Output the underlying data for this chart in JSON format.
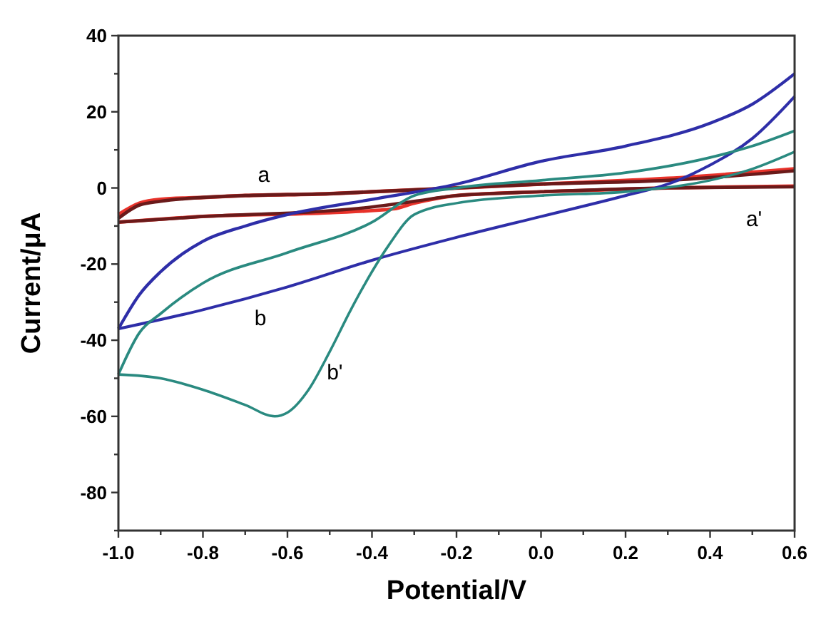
{
  "chart_data": {
    "type": "line",
    "xlabel": "Potential/V",
    "ylabel": "Current/μA",
    "xlim": [
      -1.0,
      0.6
    ],
    "ylim": [
      -90,
      40
    ],
    "xticks": [
      {
        "value": -1.0,
        "label": "-1.0"
      },
      {
        "value": -0.9,
        "label": null
      },
      {
        "value": -0.8,
        "label": "-0.8"
      },
      {
        "value": -0.7,
        "label": null
      },
      {
        "value": -0.6,
        "label": "-0.6"
      },
      {
        "value": -0.5,
        "label": null
      },
      {
        "value": -0.4,
        "label": "-0.4"
      },
      {
        "value": -0.3,
        "label": null
      },
      {
        "value": -0.2,
        "label": "-0.2"
      },
      {
        "value": -0.1,
        "label": null
      },
      {
        "value": 0.0,
        "label": "0.0"
      },
      {
        "value": 0.1,
        "label": null
      },
      {
        "value": 0.2,
        "label": "0.2"
      },
      {
        "value": 0.3,
        "label": null
      },
      {
        "value": 0.4,
        "label": "0.4"
      },
      {
        "value": 0.5,
        "label": null
      },
      {
        "value": 0.6,
        "label": "0.6"
      }
    ],
    "yticks": [
      {
        "value": -90,
        "label": null
      },
      -80,
      {
        "value": -70,
        "label": null
      },
      -60,
      {
        "value": -50,
        "label": null
      },
      -40,
      {
        "value": -30,
        "label": null
      },
      -20,
      {
        "value": -10,
        "label": null
      },
      0,
      {
        "value": 10,
        "label": null
      },
      20,
      {
        "value": 30,
        "label": null
      },
      40
    ],
    "grid": false,
    "marker": "none",
    "line_style": "solid",
    "series": [
      {
        "color": "#e8322a",
        "x": [
          -1.0,
          -0.95,
          -0.9,
          -0.8,
          -0.7,
          -0.5,
          -0.4,
          -0.2,
          0.0,
          0.3,
          0.6
        ],
        "values": [
          -7,
          -4,
          -3,
          -2.5,
          -2,
          -1.5,
          -1,
          0,
          1,
          2.5,
          5
        ]
      },
      {
        "color": "#e8322a",
        "x": [
          -1.0,
          -0.8,
          -0.5,
          -0.35,
          -0.3,
          -0.2,
          0.0,
          0.3,
          0.6
        ],
        "values": [
          -9,
          -7.5,
          -6.5,
          -5.5,
          -4,
          -2,
          -1,
          0,
          0.5
        ]
      },
      {
        "color": "#6a1a1a",
        "x": [
          -1.0,
          -0.95,
          -0.9,
          -0.8,
          -0.7,
          -0.5,
          -0.4,
          -0.2,
          0.0,
          0.3,
          0.6
        ],
        "values": [
          -8,
          -4.5,
          -3.5,
          -2.5,
          -2,
          -1.5,
          -1,
          0,
          1,
          2,
          4.5
        ]
      },
      {
        "color": "#6a1a1a",
        "x": [
          -1.0,
          -0.8,
          -0.5,
          -0.4,
          -0.3,
          -0.2,
          0.0,
          0.3,
          0.6
        ],
        "values": [
          -9,
          -7.5,
          -6,
          -5,
          -3.5,
          -2,
          -1,
          0,
          0.3
        ]
      },
      {
        "color": "#2e2ea8",
        "x": [
          -1.0,
          -0.95,
          -0.9,
          -0.8,
          -0.7,
          -0.6,
          -0.4,
          -0.2,
          0.0,
          0.2,
          0.4,
          0.5,
          0.6
        ],
        "values": [
          -37,
          -28,
          -22,
          -14,
          -10,
          -7,
          -3,
          1,
          7,
          11,
          17,
          22,
          30
        ]
      },
      {
        "color": "#2e2ea8",
        "x": [
          -1.0,
          -0.8,
          -0.6,
          -0.4,
          -0.2,
          0.0,
          0.2,
          0.3,
          0.4,
          0.5,
          0.6
        ],
        "values": [
          -37,
          -32,
          -26,
          -19,
          -13,
          -7.5,
          -2,
          1,
          6,
          13,
          24
        ]
      },
      {
        "color": "#2a8a80",
        "x": [
          -1.0,
          -0.95,
          -0.9,
          -0.8,
          -0.6,
          -0.4,
          -0.3,
          -0.2,
          0.0,
          0.2,
          0.4,
          0.5,
          0.6
        ],
        "values": [
          -49,
          -38,
          -33,
          -25,
          -17,
          -9,
          -2,
          0,
          2,
          4,
          8,
          11,
          15
        ]
      },
      {
        "color": "#2a8a80",
        "x": [
          -1.0,
          -0.9,
          -0.8,
          -0.7,
          -0.63,
          -0.6,
          -0.55,
          -0.5,
          -0.45,
          -0.4,
          -0.36,
          -0.3,
          -0.2,
          0.0,
          0.2,
          0.4,
          0.5,
          0.6
        ],
        "values": [
          -49,
          -50,
          -53,
          -57,
          -60,
          -59,
          -53,
          -43,
          -32,
          -22,
          -15,
          -7,
          -4,
          -2,
          -1,
          2,
          5,
          9.5
        ]
      }
    ],
    "annotations": [
      "a",
      "a'",
      "b",
      "b'"
    ]
  }
}
